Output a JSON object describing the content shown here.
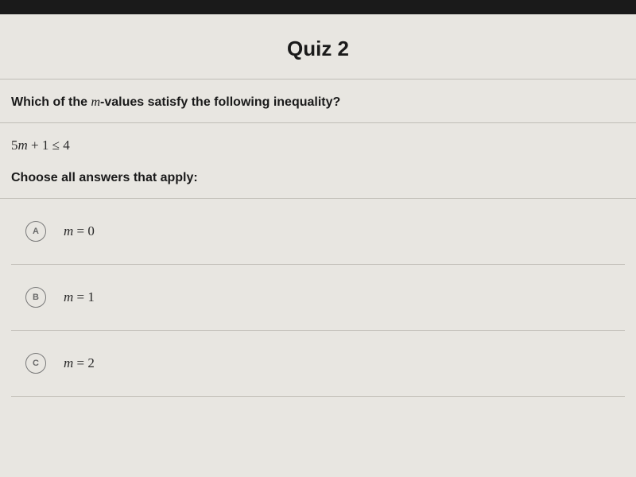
{
  "header": {
    "title": "Quiz 2"
  },
  "question": {
    "prefix": "Which of the ",
    "variable": "m",
    "suffix": "-values satisfy the following inequality?"
  },
  "inequality": {
    "coeff": "5",
    "var": "m",
    "plus": " + 1 ≤ 4"
  },
  "instruction": "Choose all answers that apply:",
  "options": [
    {
      "letter": "A",
      "var": "m",
      "eq": " = 0"
    },
    {
      "letter": "B",
      "var": "m",
      "eq": " = 1"
    },
    {
      "letter": "C",
      "var": "m",
      "eq": " = 2"
    }
  ],
  "colors": {
    "background": "#e8e6e1",
    "divider": "#c0bdb6",
    "text": "#1a1a1a",
    "circle_border": "#7a7a7a",
    "topbar": "#1a1a1a"
  }
}
